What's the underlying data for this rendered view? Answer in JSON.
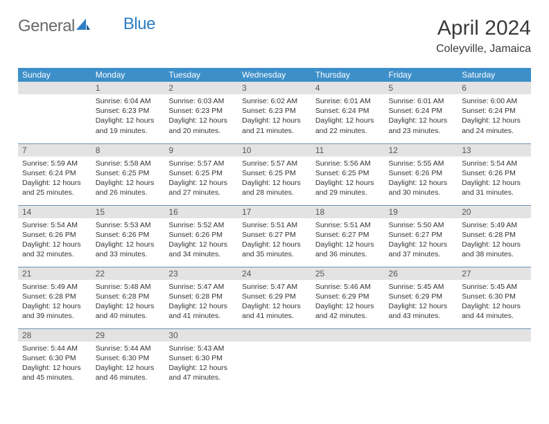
{
  "logo": {
    "text_grey": "General",
    "text_blue": "Blue"
  },
  "title": "April 2024",
  "location": "Coleyville, Jamaica",
  "colors": {
    "header_bg": "#3d8fc9",
    "header_fg": "#ffffff",
    "daynum_bg": "#e3e3e3",
    "cell_border": "#6c91b3",
    "title_color": "#3a3a3a",
    "body_text": "#333333",
    "logo_grey": "#6a6a6a",
    "logo_blue": "#2d7ec4"
  },
  "fonts": {
    "title_size": 30,
    "location_size": 16,
    "header_size": 12,
    "daynum_size": 12,
    "body_size": 10.5
  },
  "day_headers": [
    "Sunday",
    "Monday",
    "Tuesday",
    "Wednesday",
    "Thursday",
    "Friday",
    "Saturday"
  ],
  "weeks": [
    [
      {
        "blank": true
      },
      {
        "n": "1",
        "sr": "Sunrise: 6:04 AM",
        "ss": "Sunset: 6:23 PM",
        "dl": "Daylight: 12 hours and 19 minutes."
      },
      {
        "n": "2",
        "sr": "Sunrise: 6:03 AM",
        "ss": "Sunset: 6:23 PM",
        "dl": "Daylight: 12 hours and 20 minutes."
      },
      {
        "n": "3",
        "sr": "Sunrise: 6:02 AM",
        "ss": "Sunset: 6:23 PM",
        "dl": "Daylight: 12 hours and 21 minutes."
      },
      {
        "n": "4",
        "sr": "Sunrise: 6:01 AM",
        "ss": "Sunset: 6:24 PM",
        "dl": "Daylight: 12 hours and 22 minutes."
      },
      {
        "n": "5",
        "sr": "Sunrise: 6:01 AM",
        "ss": "Sunset: 6:24 PM",
        "dl": "Daylight: 12 hours and 23 minutes."
      },
      {
        "n": "6",
        "sr": "Sunrise: 6:00 AM",
        "ss": "Sunset: 6:24 PM",
        "dl": "Daylight: 12 hours and 24 minutes."
      }
    ],
    [
      {
        "n": "7",
        "sr": "Sunrise: 5:59 AM",
        "ss": "Sunset: 6:24 PM",
        "dl": "Daylight: 12 hours and 25 minutes."
      },
      {
        "n": "8",
        "sr": "Sunrise: 5:58 AM",
        "ss": "Sunset: 6:25 PM",
        "dl": "Daylight: 12 hours and 26 minutes."
      },
      {
        "n": "9",
        "sr": "Sunrise: 5:57 AM",
        "ss": "Sunset: 6:25 PM",
        "dl": "Daylight: 12 hours and 27 minutes."
      },
      {
        "n": "10",
        "sr": "Sunrise: 5:57 AM",
        "ss": "Sunset: 6:25 PM",
        "dl": "Daylight: 12 hours and 28 minutes."
      },
      {
        "n": "11",
        "sr": "Sunrise: 5:56 AM",
        "ss": "Sunset: 6:25 PM",
        "dl": "Daylight: 12 hours and 29 minutes."
      },
      {
        "n": "12",
        "sr": "Sunrise: 5:55 AM",
        "ss": "Sunset: 6:26 PM",
        "dl": "Daylight: 12 hours and 30 minutes."
      },
      {
        "n": "13",
        "sr": "Sunrise: 5:54 AM",
        "ss": "Sunset: 6:26 PM",
        "dl": "Daylight: 12 hours and 31 minutes."
      }
    ],
    [
      {
        "n": "14",
        "sr": "Sunrise: 5:54 AM",
        "ss": "Sunset: 6:26 PM",
        "dl": "Daylight: 12 hours and 32 minutes."
      },
      {
        "n": "15",
        "sr": "Sunrise: 5:53 AM",
        "ss": "Sunset: 6:26 PM",
        "dl": "Daylight: 12 hours and 33 minutes."
      },
      {
        "n": "16",
        "sr": "Sunrise: 5:52 AM",
        "ss": "Sunset: 6:26 PM",
        "dl": "Daylight: 12 hours and 34 minutes."
      },
      {
        "n": "17",
        "sr": "Sunrise: 5:51 AM",
        "ss": "Sunset: 6:27 PM",
        "dl": "Daylight: 12 hours and 35 minutes."
      },
      {
        "n": "18",
        "sr": "Sunrise: 5:51 AM",
        "ss": "Sunset: 6:27 PM",
        "dl": "Daylight: 12 hours and 36 minutes."
      },
      {
        "n": "19",
        "sr": "Sunrise: 5:50 AM",
        "ss": "Sunset: 6:27 PM",
        "dl": "Daylight: 12 hours and 37 minutes."
      },
      {
        "n": "20",
        "sr": "Sunrise: 5:49 AM",
        "ss": "Sunset: 6:28 PM",
        "dl": "Daylight: 12 hours and 38 minutes."
      }
    ],
    [
      {
        "n": "21",
        "sr": "Sunrise: 5:49 AM",
        "ss": "Sunset: 6:28 PM",
        "dl": "Daylight: 12 hours and 39 minutes."
      },
      {
        "n": "22",
        "sr": "Sunrise: 5:48 AM",
        "ss": "Sunset: 6:28 PM",
        "dl": "Daylight: 12 hours and 40 minutes."
      },
      {
        "n": "23",
        "sr": "Sunrise: 5:47 AM",
        "ss": "Sunset: 6:28 PM",
        "dl": "Daylight: 12 hours and 41 minutes."
      },
      {
        "n": "24",
        "sr": "Sunrise: 5:47 AM",
        "ss": "Sunset: 6:29 PM",
        "dl": "Daylight: 12 hours and 41 minutes."
      },
      {
        "n": "25",
        "sr": "Sunrise: 5:46 AM",
        "ss": "Sunset: 6:29 PM",
        "dl": "Daylight: 12 hours and 42 minutes."
      },
      {
        "n": "26",
        "sr": "Sunrise: 5:45 AM",
        "ss": "Sunset: 6:29 PM",
        "dl": "Daylight: 12 hours and 43 minutes."
      },
      {
        "n": "27",
        "sr": "Sunrise: 5:45 AM",
        "ss": "Sunset: 6:30 PM",
        "dl": "Daylight: 12 hours and 44 minutes."
      }
    ],
    [
      {
        "n": "28",
        "sr": "Sunrise: 5:44 AM",
        "ss": "Sunset: 6:30 PM",
        "dl": "Daylight: 12 hours and 45 minutes."
      },
      {
        "n": "29",
        "sr": "Sunrise: 5:44 AM",
        "ss": "Sunset: 6:30 PM",
        "dl": "Daylight: 12 hours and 46 minutes."
      },
      {
        "n": "30",
        "sr": "Sunrise: 5:43 AM",
        "ss": "Sunset: 6:30 PM",
        "dl": "Daylight: 12 hours and 47 minutes."
      },
      {
        "blank": true
      },
      {
        "blank": true
      },
      {
        "blank": true
      },
      {
        "blank": true
      }
    ]
  ]
}
